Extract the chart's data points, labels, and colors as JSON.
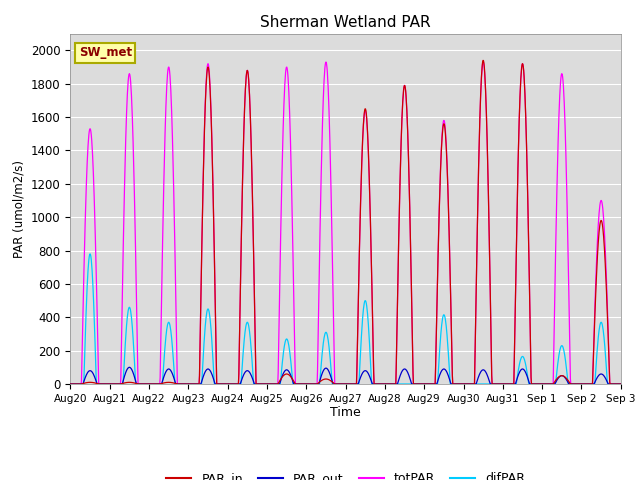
{
  "title": "Sherman Wetland PAR",
  "ylabel": "PAR (umol/m2/s)",
  "xlabel": "Time",
  "annotation": "SW_met",
  "ylim": [
    0,
    2100
  ],
  "yticks": [
    0,
    200,
    400,
    600,
    800,
    1000,
    1200,
    1400,
    1600,
    1800,
    2000
  ],
  "colors": {
    "PAR_in": "#cc0000",
    "PAR_out": "#0000cc",
    "totPAR": "#ff00ff",
    "difPAR": "#00ccff"
  },
  "bg_color": "#dcdcdc",
  "tick_labels": [
    "Aug 20",
    "Aug 21",
    "Aug 22",
    "Aug 23",
    "Aug 24",
    "Aug 25",
    "Aug 26",
    "Aug 27",
    "Aug 28",
    "Aug 29",
    "Aug 30",
    "Aug 31",
    "Sep 1",
    "Sep 2",
    "Sep 3"
  ],
  "totPAR_peaks": [
    1530,
    1860,
    1900,
    1920,
    1880,
    1900,
    1930,
    1640,
    1790,
    1580,
    1930,
    1920,
    1860,
    1100
  ],
  "PAR_in_peaks": [
    10,
    10,
    10,
    1900,
    1880,
    60,
    30,
    1650,
    1790,
    1560,
    1940,
    1920,
    50,
    980
  ],
  "difPAR_peaks": [
    780,
    460,
    370,
    450,
    370,
    270,
    310,
    500,
    0,
    415,
    0,
    165,
    230,
    370
  ],
  "PAR_out_peaks": [
    80,
    100,
    90,
    90,
    80,
    85,
    95,
    80,
    90,
    90,
    85,
    90,
    50,
    60
  ]
}
